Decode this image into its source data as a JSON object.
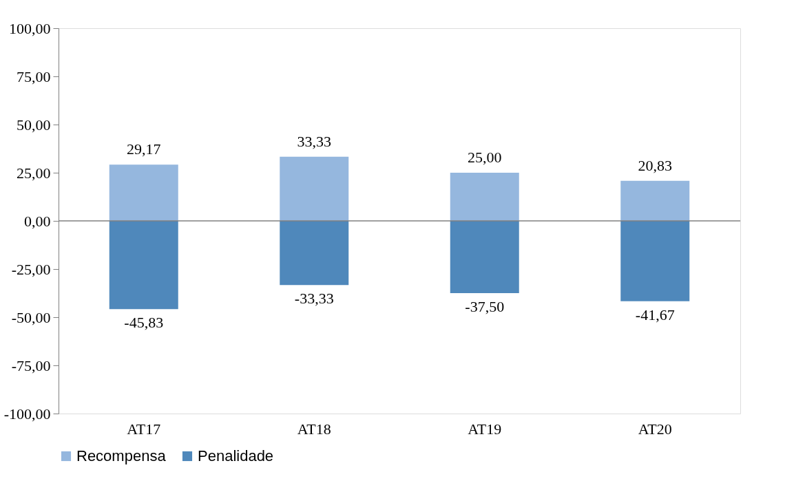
{
  "chart_data": {
    "type": "bar",
    "categories": [
      "AT17",
      "AT18",
      "AT19",
      "AT20"
    ],
    "stacked": true,
    "series": [
      {
        "name": "Recompensa",
        "color": "#95b7de",
        "values": [
          29.17,
          33.33,
          25.0,
          20.83
        ],
        "value_labels": [
          "29,17",
          "33,33",
          "25,00",
          "20,83"
        ]
      },
      {
        "name": "Penalidade",
        "color": "#4f88bb",
        "values": [
          -45.83,
          -33.33,
          -37.5,
          -41.67
        ],
        "value_labels": [
          "-45,83",
          "-33,33",
          "-37,50",
          "-41,67"
        ]
      }
    ],
    "ylim": [
      -100,
      100
    ],
    "yticks": [
      {
        "value": -100,
        "label": "-100,00"
      },
      {
        "value": -75,
        "label": "-75,00"
      },
      {
        "value": -50,
        "label": "-50,00"
      },
      {
        "value": -25,
        "label": "-25,00"
      },
      {
        "value": 0,
        "label": "0,00"
      },
      {
        "value": 25,
        "label": "25,00"
      },
      {
        "value": 50,
        "label": "50,00"
      },
      {
        "value": 75,
        "label": "75,00"
      },
      {
        "value": 100,
        "label": "100,00"
      }
    ],
    "legend": "bottom"
  }
}
